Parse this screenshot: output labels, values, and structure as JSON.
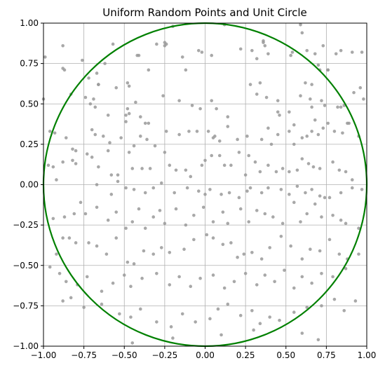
{
  "chart_data": {
    "type": "scatter",
    "title": "Uniform Random Points and Unit Circle",
    "xlabel": "",
    "ylabel": "",
    "xlim": [
      -1.0,
      1.0
    ],
    "ylim": [
      -1.0,
      1.0
    ],
    "grid": true,
    "x_ticks": [
      -1.0,
      -0.75,
      -0.5,
      -0.25,
      0.0,
      0.25,
      0.5,
      0.75,
      1.0
    ],
    "y_ticks": [
      -1.0,
      -0.75,
      -0.5,
      -0.25,
      0.0,
      0.25,
      0.5,
      0.75,
      1.0
    ],
    "x_tick_labels": [
      "−1.00",
      "−0.75",
      "−0.50",
      "−0.25",
      "0.00",
      "0.25",
      "0.50",
      "0.75",
      "1.00"
    ],
    "y_tick_labels": [
      "−1.00",
      "−0.75",
      "−0.50",
      "−0.25",
      "0.00",
      "0.25",
      "0.50",
      "0.75",
      "1.00"
    ],
    "circle": {
      "center": [
        0.0,
        0.0
      ],
      "radius": 1.0,
      "color": "#008000"
    },
    "point_color": "#999999",
    "points": [
      [
        -0.99,
        0.79
      ],
      [
        -0.88,
        0.86
      ],
      [
        -0.88,
        0.72
      ],
      [
        -0.87,
        0.71
      ],
      [
        -0.83,
        0.56
      ],
      [
        -0.76,
        0.77
      ],
      [
        -0.72,
        0.66
      ],
      [
        -0.67,
        0.69
      ],
      [
        -0.66,
        0.62
      ],
      [
        -0.62,
        0.75
      ],
      [
        -0.57,
        0.87
      ],
      [
        -0.55,
        0.6
      ],
      [
        -0.48,
        0.63
      ],
      [
        -0.47,
        0.61
      ],
      [
        -0.42,
        0.8
      ],
      [
        -0.41,
        0.8
      ],
      [
        -0.35,
        0.71
      ],
      [
        -0.3,
        0.87
      ],
      [
        -0.25,
        0.88
      ],
      [
        -0.25,
        0.86
      ],
      [
        -0.24,
        0.87
      ],
      [
        -0.2,
        0.98
      ],
      [
        -0.14,
        0.79
      ],
      [
        -0.12,
        0.71
      ],
      [
        -0.04,
        0.83
      ],
      [
        -0.02,
        0.82
      ],
      [
        0.04,
        0.8
      ],
      [
        0.12,
        0.99
      ],
      [
        0.22,
        0.84
      ],
      [
        0.29,
        0.83
      ],
      [
        0.32,
        0.78
      ],
      [
        0.36,
        0.89
      ],
      [
        0.36,
        0.88
      ],
      [
        0.37,
        0.86
      ],
      [
        0.39,
        0.81
      ],
      [
        0.53,
        0.8
      ],
      [
        0.54,
        0.82
      ],
      [
        0.59,
        0.99
      ],
      [
        0.63,
        0.83
      ],
      [
        0.68,
        0.81
      ],
      [
        0.73,
        0.86
      ],
      [
        0.76,
        0.71
      ],
      [
        0.81,
        0.81
      ],
      [
        0.84,
        0.83
      ],
      [
        0.91,
        0.82
      ],
      [
        0.97,
        0.82
      ],
      [
        0.62,
        0.63
      ],
      [
        0.66,
        0.62
      ],
      [
        0.7,
        0.74
      ],
      [
        0.71,
        0.71
      ],
      [
        0.76,
        0.71
      ],
      [
        0.6,
        0.94
      ],
      [
        -0.66,
        0.62
      ],
      [
        -1.0,
        0.53
      ],
      [
        -0.74,
        0.54
      ],
      [
        -0.71,
        0.5
      ],
      [
        -0.69,
        0.53
      ],
      [
        -0.68,
        0.48
      ],
      [
        -0.6,
        0.43
      ],
      [
        -0.49,
        0.43
      ],
      [
        -0.48,
        0.47
      ],
      [
        -0.47,
        0.44
      ],
      [
        -0.43,
        0.51
      ],
      [
        -0.4,
        0.42
      ],
      [
        -0.37,
        0.38
      ],
      [
        -0.35,
        0.38
      ],
      [
        -0.26,
        0.55
      ],
      [
        -0.16,
        0.52
      ],
      [
        -0.08,
        0.49
      ],
      [
        -0.03,
        0.47
      ],
      [
        0.04,
        0.52
      ],
      [
        0.07,
        0.47
      ],
      [
        0.14,
        0.42
      ],
      [
        0.28,
        0.62
      ],
      [
        0.32,
        0.56
      ],
      [
        0.34,
        0.63
      ],
      [
        0.38,
        0.54
      ],
      [
        0.45,
        0.52
      ],
      [
        0.45,
        0.45
      ],
      [
        0.46,
        0.43
      ],
      [
        0.52,
        0.45
      ],
      [
        0.55,
        0.37
      ],
      [
        0.59,
        0.55
      ],
      [
        0.65,
        0.53
      ],
      [
        0.66,
        0.48
      ],
      [
        0.72,
        0.52
      ],
      [
        0.74,
        0.49
      ],
      [
        0.82,
        0.48
      ],
      [
        0.84,
        0.48
      ],
      [
        0.86,
        0.49
      ],
      [
        0.88,
        0.38
      ],
      [
        0.92,
        0.57
      ],
      [
        0.96,
        0.6
      ],
      [
        0.98,
        0.53
      ],
      [
        -0.96,
        0.33
      ],
      [
        -0.93,
        0.32
      ],
      [
        -0.86,
        0.29
      ],
      [
        -0.82,
        0.22
      ],
      [
        -0.8,
        0.21
      ],
      [
        -0.7,
        0.34
      ],
      [
        -0.68,
        0.31
      ],
      [
        -0.63,
        0.3
      ],
      [
        -0.59,
        0.26
      ],
      [
        -0.6,
        0.21
      ],
      [
        -0.52,
        0.29
      ],
      [
        -0.49,
        0.39
      ],
      [
        -0.44,
        0.24
      ],
      [
        -0.4,
        0.3
      ],
      [
        -0.36,
        0.28
      ],
      [
        -0.31,
        0.24
      ],
      [
        -0.24,
        0.33
      ],
      [
        -0.16,
        0.31
      ],
      [
        -0.1,
        0.33
      ],
      [
        -0.05,
        0.33
      ],
      [
        0.02,
        0.33
      ],
      [
        0.05,
        0.29
      ],
      [
        0.06,
        0.3
      ],
      [
        0.09,
        0.27
      ],
      [
        0.14,
        0.36
      ],
      [
        0.2,
        0.28
      ],
      [
        0.26,
        0.3
      ],
      [
        0.35,
        0.28
      ],
      [
        0.39,
        0.35
      ],
      [
        0.41,
        0.25
      ],
      [
        0.45,
        0.31
      ],
      [
        0.52,
        0.33
      ],
      [
        0.55,
        0.25
      ],
      [
        0.6,
        0.29
      ],
      [
        0.63,
        0.3
      ],
      [
        0.66,
        0.33
      ],
      [
        0.7,
        0.31
      ],
      [
        0.73,
        0.35
      ],
      [
        0.76,
        0.38
      ],
      [
        0.8,
        0.33
      ],
      [
        0.85,
        0.32
      ],
      [
        0.89,
        0.38
      ],
      [
        0.95,
        0.3
      ],
      [
        0.68,
        0.4
      ],
      [
        -0.97,
        0.12
      ],
      [
        -0.94,
        0.11
      ],
      [
        -0.88,
        0.14
      ],
      [
        -0.82,
        0.15
      ],
      [
        -0.8,
        0.13
      ],
      [
        -0.73,
        0.19
      ],
      [
        -0.7,
        0.17
      ],
      [
        -0.66,
        0.11
      ],
      [
        -0.58,
        0.06
      ],
      [
        -0.54,
        0.06
      ],
      [
        -0.47,
        0.2
      ],
      [
        -0.45,
        0.1
      ],
      [
        -0.39,
        0.1
      ],
      [
        -0.34,
        0.1
      ],
      [
        -0.25,
        0.2
      ],
      [
        -0.22,
        0.12
      ],
      [
        -0.18,
        0.09
      ],
      [
        -0.12,
        0.09
      ],
      [
        -0.09,
        0.05
      ],
      [
        -0.02,
        0.12
      ],
      [
        0.0,
        0.15
      ],
      [
        0.04,
        0.18
      ],
      [
        0.09,
        0.18
      ],
      [
        0.12,
        0.12
      ],
      [
        0.16,
        0.12
      ],
      [
        0.21,
        0.2
      ],
      [
        0.25,
        0.06
      ],
      [
        0.27,
        0.18
      ],
      [
        0.31,
        0.14
      ],
      [
        0.34,
        0.08
      ],
      [
        0.39,
        0.12
      ],
      [
        0.44,
        0.08
      ],
      [
        0.48,
        0.1
      ],
      [
        0.52,
        0.08
      ],
      [
        0.57,
        0.09
      ],
      [
        0.6,
        0.16
      ],
      [
        0.64,
        0.13
      ],
      [
        0.67,
        0.11
      ],
      [
        0.71,
        0.1
      ],
      [
        0.79,
        0.14
      ],
      [
        0.83,
        0.09
      ],
      [
        0.87,
        0.08
      ],
      [
        0.91,
        0.03
      ],
      [
        -0.92,
        0.03
      ],
      [
        -0.67,
        0.0
      ],
      [
        -0.58,
        -0.06
      ],
      [
        -0.54,
        0.02
      ],
      [
        -0.49,
        -0.02
      ],
      [
        -0.44,
        -0.03
      ],
      [
        -0.37,
        -0.05
      ],
      [
        -0.32,
        -0.02
      ],
      [
        -0.27,
        0.01
      ],
      [
        -0.19,
        -0.05
      ],
      [
        -0.11,
        -0.02
      ],
      [
        -0.04,
        -0.04
      ],
      [
        0.0,
        -0.06
      ],
      [
        0.03,
        -0.03
      ],
      [
        0.1,
        -0.06
      ],
      [
        0.15,
        -0.05
      ],
      [
        0.21,
        -0.08
      ],
      [
        0.26,
        -0.04
      ],
      [
        0.28,
        -0.02
      ],
      [
        0.35,
        -0.05
      ],
      [
        0.39,
        -0.02
      ],
      [
        0.47,
        -0.03
      ],
      [
        0.52,
        -0.06
      ],
      [
        0.57,
        -0.01
      ],
      [
        0.62,
        -0.05
      ],
      [
        0.66,
        -0.03
      ],
      [
        0.71,
        -0.07
      ],
      [
        0.74,
        -0.08
      ],
      [
        0.77,
        -0.08
      ],
      [
        0.84,
        -0.05
      ],
      [
        0.91,
        -0.02
      ],
      [
        0.97,
        -0.03
      ],
      [
        -0.94,
        -0.21
      ],
      [
        -0.87,
        -0.2
      ],
      [
        -0.81,
        -0.18
      ],
      [
        -0.77,
        -0.11
      ],
      [
        -0.74,
        -0.18
      ],
      [
        -0.67,
        -0.14
      ],
      [
        -0.6,
        -0.22
      ],
      [
        -0.55,
        -0.17
      ],
      [
        -0.49,
        -0.27
      ],
      [
        -0.45,
        -0.23
      ],
      [
        -0.41,
        -0.15
      ],
      [
        -0.37,
        -0.27
      ],
      [
        -0.32,
        -0.2
      ],
      [
        -0.28,
        -0.16
      ],
      [
        -0.25,
        -0.24
      ],
      [
        -0.18,
        -0.15
      ],
      [
        -0.12,
        -0.25
      ],
      [
        -0.07,
        -0.19
      ],
      [
        -0.01,
        -0.14
      ],
      [
        0.05,
        -0.23
      ],
      [
        0.11,
        -0.17
      ],
      [
        0.14,
        -0.24
      ],
      [
        0.22,
        -0.15
      ],
      [
        0.27,
        -0.23
      ],
      [
        0.32,
        -0.16
      ],
      [
        0.37,
        -0.18
      ],
      [
        0.42,
        -0.2
      ],
      [
        0.48,
        -0.24
      ],
      [
        0.55,
        -0.11
      ],
      [
        0.59,
        -0.23
      ],
      [
        0.63,
        -0.18
      ],
      [
        0.68,
        -0.12
      ],
      [
        0.72,
        -0.2
      ],
      [
        0.79,
        -0.19
      ],
      [
        0.84,
        -0.22
      ],
      [
        0.87,
        -0.24
      ],
      [
        0.95,
        -0.27
      ],
      [
        -0.92,
        -0.43
      ],
      [
        -0.88,
        -0.33
      ],
      [
        -0.84,
        -0.33
      ],
      [
        -0.8,
        -0.36
      ],
      [
        -0.72,
        -0.36
      ],
      [
        -0.67,
        -0.38
      ],
      [
        -0.61,
        -0.43
      ],
      [
        -0.55,
        -0.33
      ],
      [
        -0.48,
        -0.48
      ],
      [
        -0.44,
        -0.49
      ],
      [
        -0.38,
        -0.41
      ],
      [
        -0.32,
        -0.43
      ],
      [
        -0.27,
        -0.39
      ],
      [
        -0.22,
        -0.42
      ],
      [
        -0.13,
        -0.4
      ],
      [
        -0.07,
        -0.34
      ],
      [
        0.01,
        -0.31
      ],
      [
        0.05,
        -0.33
      ],
      [
        0.11,
        -0.37
      ],
      [
        0.16,
        -0.36
      ],
      [
        0.2,
        -0.45
      ],
      [
        0.24,
        -0.43
      ],
      [
        0.29,
        -0.42
      ],
      [
        0.35,
        -0.46
      ],
      [
        0.4,
        -0.39
      ],
      [
        0.47,
        -0.32
      ],
      [
        0.53,
        -0.38
      ],
      [
        0.6,
        -0.46
      ],
      [
        0.65,
        -0.4
      ],
      [
        0.71,
        -0.41
      ],
      [
        0.77,
        -0.34
      ],
      [
        0.83,
        -0.43
      ],
      [
        0.88,
        -0.46
      ],
      [
        0.95,
        -0.43
      ],
      [
        -0.96,
        -0.51
      ],
      [
        -0.9,
        -0.55
      ],
      [
        -0.86,
        -0.6
      ],
      [
        -0.79,
        -0.62
      ],
      [
        -0.73,
        -0.57
      ],
      [
        -0.64,
        -0.66
      ],
      [
        -0.57,
        -0.61
      ],
      [
        -0.5,
        -0.56
      ],
      [
        -0.46,
        -0.63
      ],
      [
        -0.39,
        -0.58
      ],
      [
        -0.3,
        -0.55
      ],
      [
        -0.22,
        -0.62
      ],
      [
        -0.16,
        -0.57
      ],
      [
        -0.09,
        -0.63
      ],
      [
        -0.03,
        -0.58
      ],
      [
        0.05,
        -0.56
      ],
      [
        0.12,
        -0.64
      ],
      [
        0.18,
        -0.6
      ],
      [
        0.25,
        -0.55
      ],
      [
        0.32,
        -0.62
      ],
      [
        0.37,
        -0.56
      ],
      [
        0.43,
        -0.6
      ],
      [
        0.49,
        -0.53
      ],
      [
        0.55,
        -0.64
      ],
      [
        0.6,
        -0.57
      ],
      [
        0.66,
        -0.61
      ],
      [
        0.72,
        -0.55
      ],
      [
        0.79,
        -0.57
      ],
      [
        0.87,
        -0.52
      ],
      [
        -0.88,
        -0.72
      ],
      [
        -0.83,
        -0.7
      ],
      [
        -0.75,
        -0.76
      ],
      [
        -0.64,
        -0.74
      ],
      [
        -0.53,
        -0.8
      ],
      [
        -0.46,
        -0.82
      ],
      [
        -0.4,
        -0.77
      ],
      [
        -0.3,
        -0.85
      ],
      [
        -0.21,
        -0.88
      ],
      [
        -0.14,
        -0.8
      ],
      [
        -0.06,
        -0.85
      ],
      [
        0.03,
        -0.83
      ],
      [
        0.08,
        -0.77
      ],
      [
        0.14,
        -0.74
      ],
      [
        0.22,
        -0.81
      ],
      [
        0.29,
        -0.78
      ],
      [
        0.34,
        -0.86
      ],
      [
        0.4,
        -0.82
      ],
      [
        0.46,
        -0.84
      ],
      [
        0.55,
        -0.79
      ],
      [
        0.63,
        -0.76
      ],
      [
        0.72,
        -0.75
      ],
      [
        0.8,
        -0.71
      ],
      [
        0.86,
        -0.78
      ],
      [
        0.93,
        -0.72
      ],
      [
        -0.45,
        -0.98
      ],
      [
        -0.2,
        -0.95
      ],
      [
        0.1,
        -0.93
      ],
      [
        0.3,
        -0.9
      ],
      [
        0.6,
        -0.92
      ],
      [
        0.7,
        -0.96
      ]
    ]
  }
}
